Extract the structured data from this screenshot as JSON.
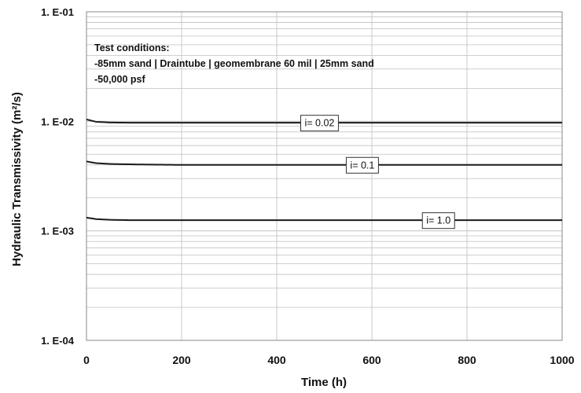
{
  "chart_data": {
    "type": "line",
    "xlabel": "Time (h)",
    "ylabel": "Hydraulic Transmissivity (m²/s)",
    "xlim": [
      0,
      1000
    ],
    "x_ticks": [
      0,
      200,
      400,
      600,
      800,
      1000
    ],
    "x_tick_labels": [
      "0",
      "200",
      "400",
      "600",
      "800",
      "1000"
    ],
    "ylim": [
      0.0001,
      0.1
    ],
    "y_scale": "log",
    "y_ticks": [
      0.1,
      0.01,
      0.001,
      0.0001
    ],
    "y_tick_labels": [
      "1. E-01",
      "1. E-02",
      "1. E-03",
      "1. E-04"
    ],
    "grid": true,
    "line_color": "#1a1a1a",
    "grid_color": "#c8c8c8",
    "annotation": {
      "lines": [
        "Test conditions:",
        "-85mm sand | Draintube | geomembrane 60 mil | 25mm sand",
        "-50,000 psf"
      ]
    },
    "series": [
      {
        "name": "i= 0.02",
        "x": [
          0,
          20,
          50,
          100,
          150,
          200,
          400,
          600,
          800,
          1000
        ],
        "values": [
          0.0104,
          0.0099,
          0.00975,
          0.0097,
          0.0097,
          0.0097,
          0.0097,
          0.0097,
          0.0097,
          0.0097
        ],
        "label_at_x": 490
      },
      {
        "name": "i= 0.1",
        "x": [
          0,
          20,
          50,
          100,
          150,
          200,
          400,
          600,
          800,
          1000
        ],
        "values": [
          0.0043,
          0.00415,
          0.00408,
          0.00404,
          0.00402,
          0.004,
          0.004,
          0.004,
          0.004,
          0.004
        ],
        "label_at_x": 580
      },
      {
        "name": "i= 1.0",
        "x": [
          0,
          20,
          50,
          100,
          150,
          200,
          400,
          600,
          800,
          1000
        ],
        "values": [
          0.00132,
          0.00128,
          0.00126,
          0.00125,
          0.00125,
          0.00125,
          0.00125,
          0.00125,
          0.00125,
          0.00125
        ],
        "label_at_x": 740
      }
    ]
  }
}
